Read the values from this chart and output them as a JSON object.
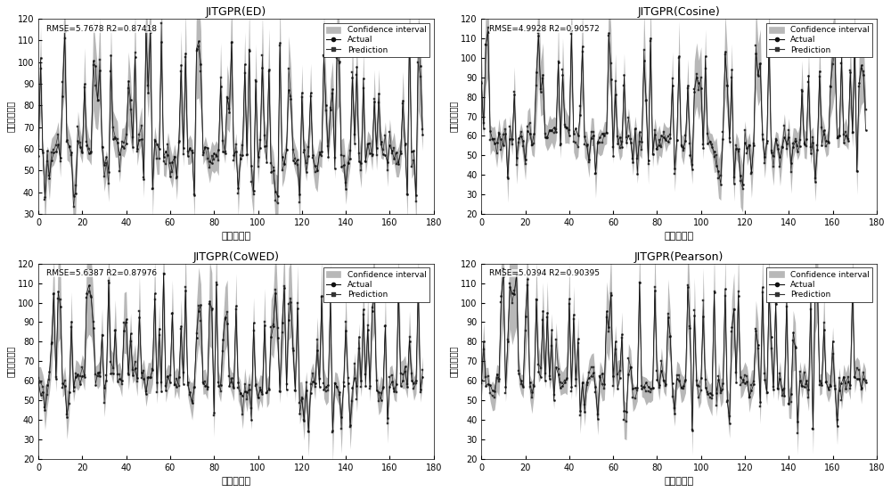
{
  "subplots": [
    {
      "title": "JITGPR(ED)",
      "rmse": "RMSE=5.7678 R2=0.87418",
      "ylim": [
        30,
        120
      ],
      "yticks": [
        30,
        40,
        50,
        60,
        70,
        80,
        90,
        100,
        110,
        120
      ],
      "seed": 101
    },
    {
      "title": "JITGPR(Cosine)",
      "rmse": "RMSE=4.9928 R2=0.90572",
      "ylim": [
        20,
        120
      ],
      "yticks": [
        20,
        30,
        40,
        50,
        60,
        70,
        80,
        90,
        100,
        110,
        120
      ],
      "seed": 202
    },
    {
      "title": "JITGPR(CoWED)",
      "rmse": "RMSE=5.6387 R2=0.87976",
      "ylim": [
        20,
        120
      ],
      "yticks": [
        20,
        30,
        40,
        50,
        60,
        70,
        80,
        90,
        100,
        110,
        120
      ],
      "seed": 303
    },
    {
      "title": "JITGPR(Pearson)",
      "rmse": "RMSE=5.0394 R2=0.90395",
      "ylim": [
        20,
        120
      ],
      "yticks": [
        20,
        30,
        40,
        50,
        60,
        70,
        80,
        90,
        100,
        110,
        120
      ],
      "seed": 404
    }
  ],
  "n_samples": 176,
  "xlim": [
    0,
    180
  ],
  "xticks": [
    0,
    20,
    40,
    60,
    80,
    100,
    120,
    140,
    160,
    180
  ],
  "xlabel": "测试样本数",
  "ylabel": "门尼粿度数值",
  "actual_color": "#111111",
  "pred_color": "#333333",
  "conf_color": "#b8b8b8",
  "legend_labels": [
    "Confidence interval",
    "Actual",
    "Prediction"
  ],
  "figure_size": [
    10.0,
    5.52
  ],
  "dpi": 100
}
